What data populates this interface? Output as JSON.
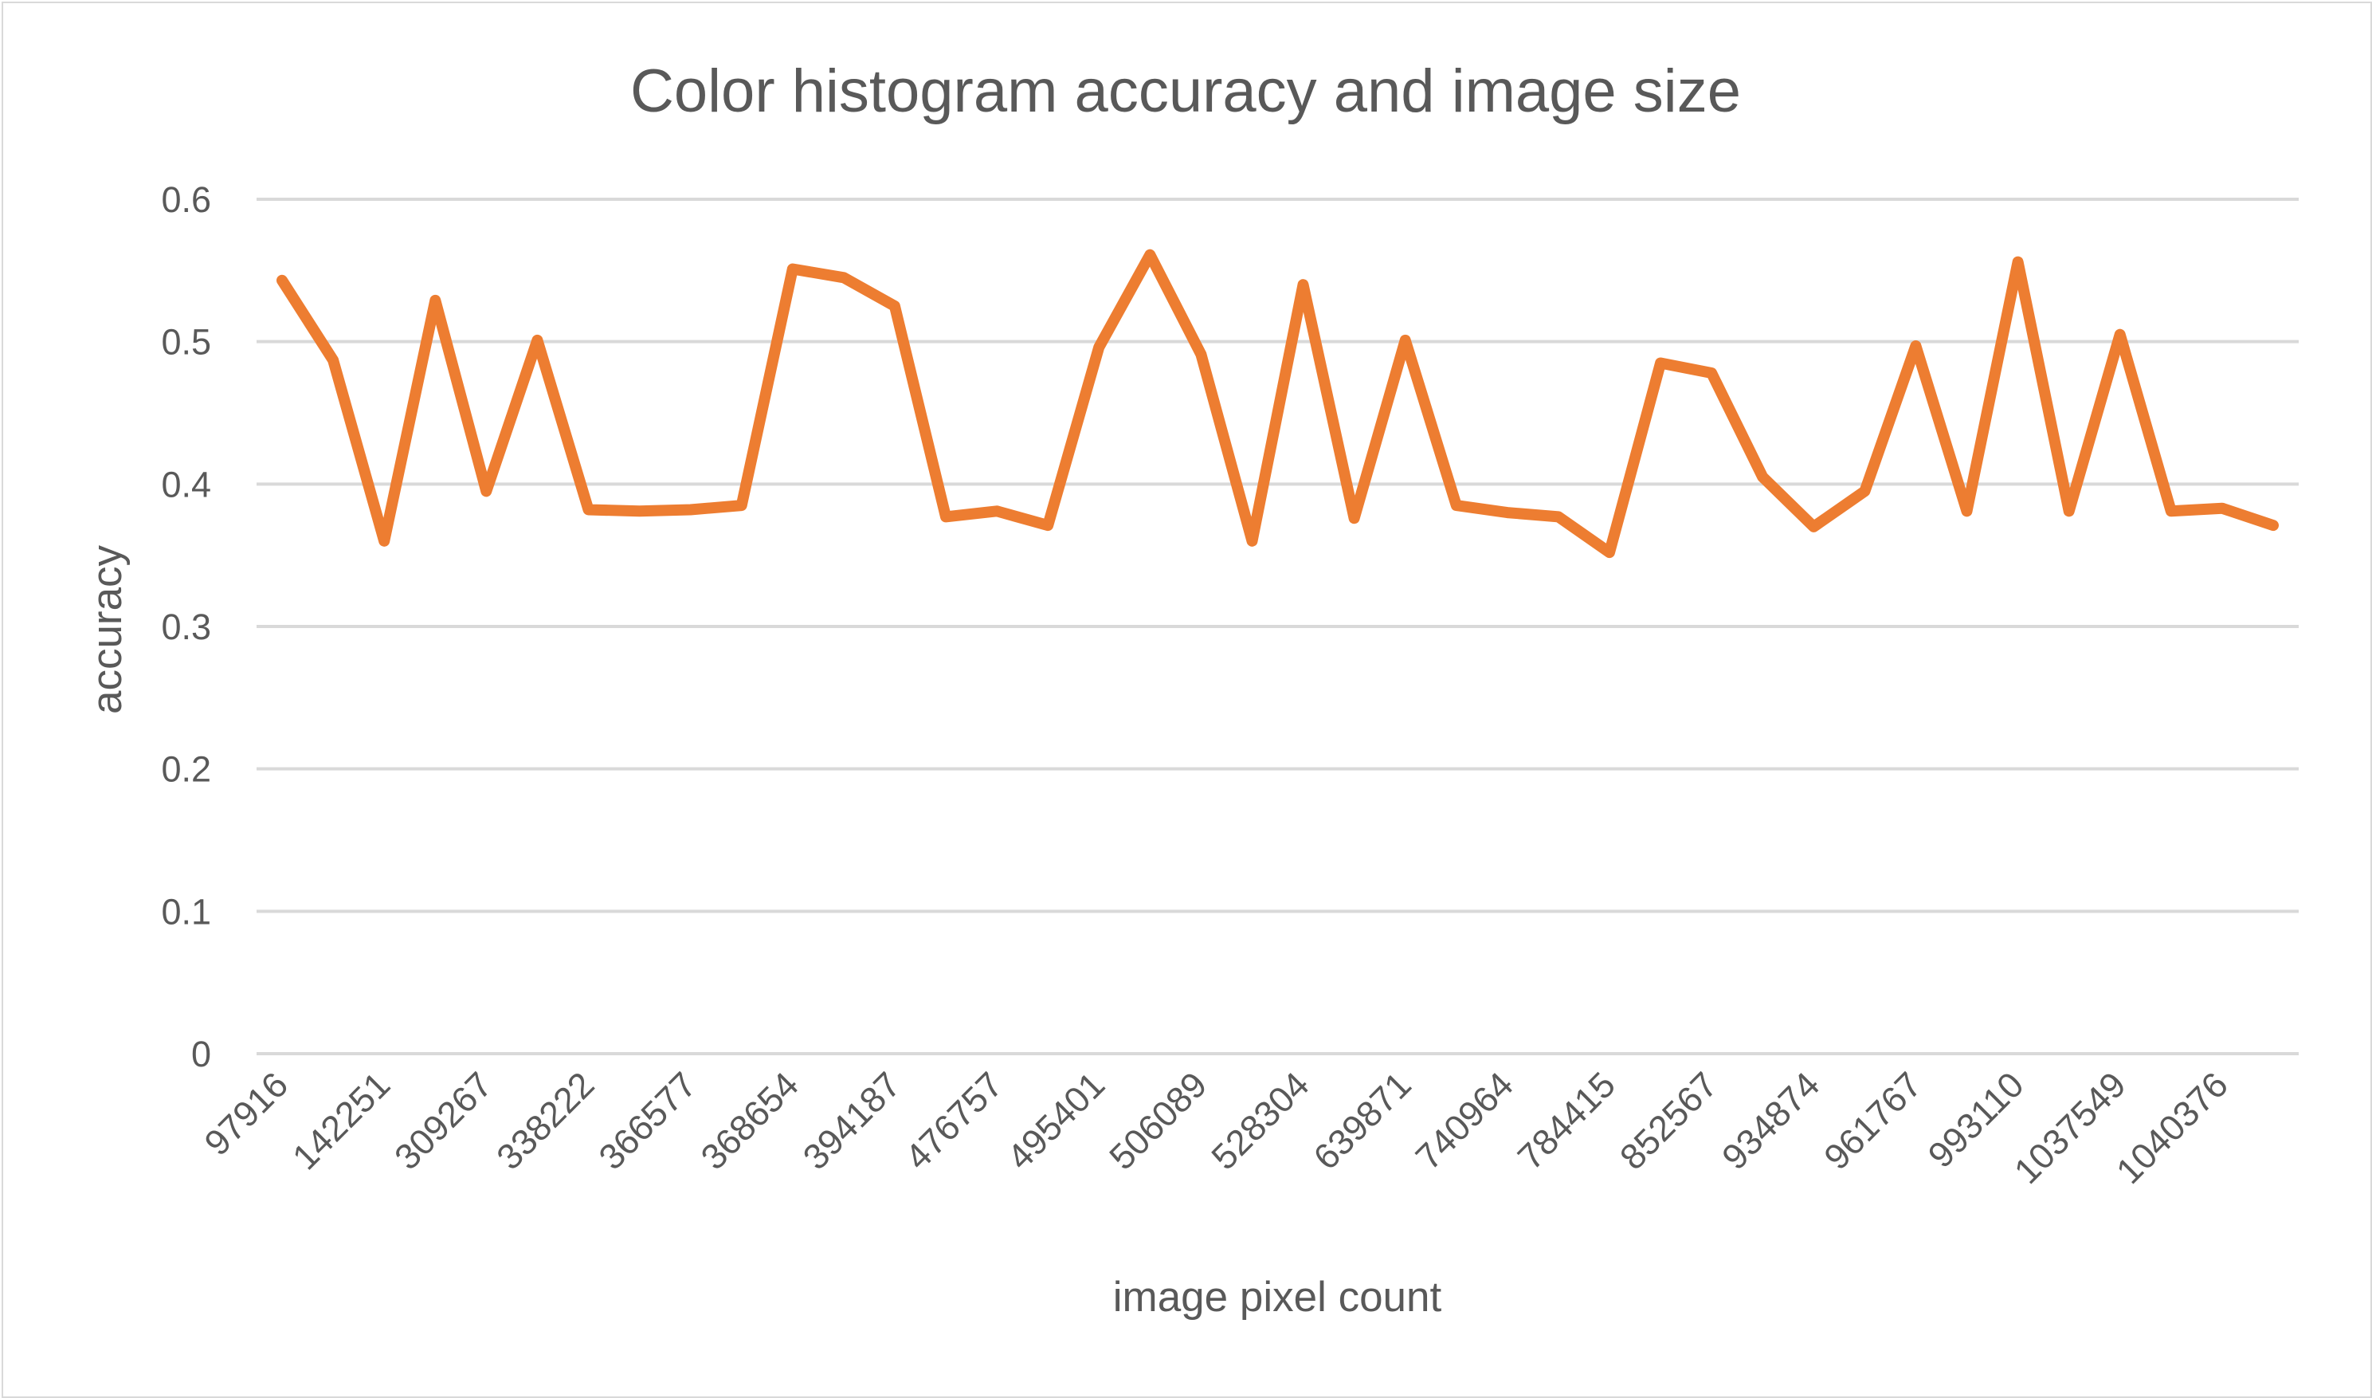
{
  "chart_data": {
    "type": "line",
    "title": "Color histogram accuracy and image size",
    "xlabel": "image pixel count",
    "ylabel": "accuracy",
    "ylim": [
      0,
      0.6
    ],
    "yticks": [
      "0",
      "0.1",
      "0.2",
      "0.3",
      "0.4",
      "0.5",
      "0.6"
    ],
    "tick_labels": [
      "97916",
      "142251",
      "309267",
      "338222",
      "366577",
      "368654",
      "394187",
      "476757",
      "495401",
      "506089",
      "528304",
      "639871",
      "740964",
      "784415",
      "852567",
      "934874",
      "961767",
      "993110",
      "1037549",
      "1040376"
    ],
    "label_every": 2,
    "grid": true,
    "legend": "none",
    "series": [
      {
        "name": "accuracy",
        "color": "#ed7d31",
        "values": [
          0.543,
          0.487,
          0.36,
          0.529,
          0.395,
          0.501,
          0.382,
          0.381,
          0.382,
          0.385,
          0.551,
          0.545,
          0.525,
          0.377,
          0.381,
          0.371,
          0.496,
          0.561,
          0.491,
          0.36,
          0.54,
          0.376,
          0.501,
          0.385,
          0.38,
          0.377,
          0.352,
          0.485,
          0.478,
          0.405,
          0.37,
          0.395,
          0.497,
          0.381,
          0.556,
          0.381,
          0.505,
          0.381,
          0.383,
          0.371
        ]
      }
    ]
  }
}
